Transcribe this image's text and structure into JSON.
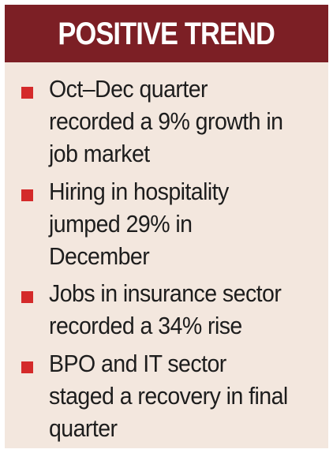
{
  "header": {
    "title": "POSITIVE TREND"
  },
  "colors": {
    "header_background": "#7c1f25",
    "card_background": "#f3e7de",
    "bullet": "#d42a2a",
    "text": "#1d1d1d"
  },
  "items": [
    {
      "text": "Oct–Dec quarter\nrecorded a 9% growth in\njob market"
    },
    {
      "text": "Hiring in hospitality\njumped 29% in\nDecember"
    },
    {
      "text": "Jobs in insurance sector\nrecorded a 34% rise"
    },
    {
      "text": "BPO and IT sector\nstaged a recovery in final\nquarter"
    }
  ]
}
